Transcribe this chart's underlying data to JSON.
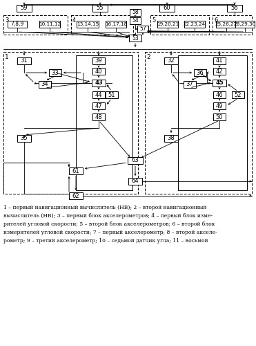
{
  "figsize": [
    3.71,
    5.0
  ],
  "dpi": 100,
  "bg_color": "#ffffff",
  "caption_lines": [
    "1 – первый навигационный вычислитель (НВ); 2 – второй навигационный",
    "вычислитель (НВ); 3 – первый блок акселерометров; 4 – первый блок изме-",
    "рителей угловой скорости; 5 – второй блок акселерометров; 6 – второй блок",
    "измерителей угловой скорости; 7 – первый акселерометр; 8 – второй акселе-",
    "рометр; 9 – третий акселерометр; 10 – седьмой датчик угла; 11 – восьмой"
  ]
}
